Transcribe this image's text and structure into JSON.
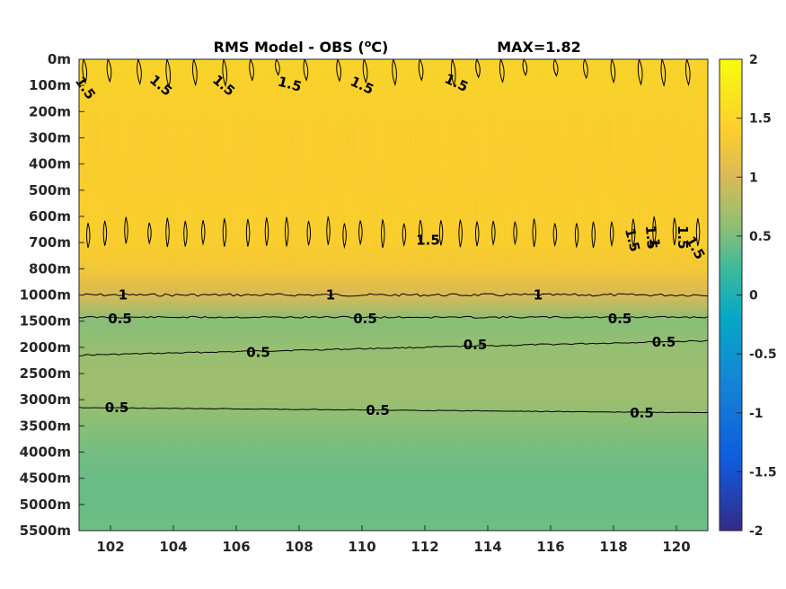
{
  "chart_data": {
    "type": "heatmap",
    "title": "RMS Model - OBS (",
    "title_unit_super": "o",
    "title_unit_suffix": "C)",
    "max_label": "MAX=1.82",
    "x_ticks": [
      102,
      104,
      106,
      108,
      110,
      112,
      114,
      116,
      118,
      120
    ],
    "xlim": [
      101,
      121
    ],
    "y_ticks": [
      "0m",
      "100m",
      "200m",
      "300m",
      "400m",
      "500m",
      "600m",
      "700m",
      "800m",
      "1000m",
      "1500m",
      "2000m",
      "2500m",
      "3000m",
      "3500m",
      "4000m",
      "4500m",
      "5000m",
      "5500m"
    ],
    "colorbar": {
      "ticks": [
        "2",
        "1.5",
        "1",
        "0.5",
        "0",
        "-0.5",
        "-1",
        "-1.5",
        "-2"
      ],
      "range": [
        -2,
        2
      ],
      "colormap": "parula"
    },
    "rms_profile_by_level": [
      1.52,
      1.48,
      1.45,
      1.43,
      1.43,
      1.43,
      1.44,
      1.43,
      1.32,
      1.0,
      0.55,
      0.62,
      0.66,
      0.66,
      0.55,
      0.47,
      0.42,
      0.42,
      0.44
    ],
    "contour_labels": [
      {
        "text": "1.5",
        "x": 101.2,
        "level": 1.1,
        "angle": 55
      },
      {
        "text": "1.5",
        "x": 103.6,
        "level": 1.0,
        "angle": 40
      },
      {
        "text": "1.5",
        "x": 105.6,
        "level": 1.0,
        "angle": 40
      },
      {
        "text": "1.5",
        "x": 107.7,
        "level": 0.95,
        "angle": 15
      },
      {
        "text": "1.5",
        "x": 110.0,
        "level": 1.0,
        "angle": 25
      },
      {
        "text": "1.5",
        "x": 113.0,
        "level": 0.9,
        "angle": 25
      },
      {
        "text": "1.5",
        "x": 112.1,
        "level": 6.9,
        "angle": 0
      },
      {
        "text": "1.5",
        "x": 118.6,
        "level": 6.9,
        "angle": 75
      },
      {
        "text": "1.5",
        "x": 119.2,
        "level": 6.8,
        "angle": 85
      },
      {
        "text": "1",
        "x": 119.3,
        "level": 7.0,
        "angle": 90
      },
      {
        "text": "1.5",
        "x": 120.2,
        "level": 6.8,
        "angle": 90
      },
      {
        "text": "1.5",
        "x": 120.6,
        "level": 7.2,
        "angle": 60
      },
      {
        "text": "1",
        "x": 102.4,
        "level": 9.0,
        "angle": 0
      },
      {
        "text": "1",
        "x": 109.0,
        "level": 9.0,
        "angle": 0
      },
      {
        "text": "1",
        "x": 115.6,
        "level": 9.0,
        "angle": 0
      },
      {
        "text": "0.5",
        "x": 102.3,
        "level": 9.9,
        "angle": 0
      },
      {
        "text": "0.5",
        "x": 110.1,
        "level": 9.9,
        "angle": 0
      },
      {
        "text": "0.5",
        "x": 118.2,
        "level": 9.9,
        "angle": 0
      },
      {
        "text": "0.5",
        "x": 106.7,
        "level": 11.2,
        "angle": 0
      },
      {
        "text": "0.5",
        "x": 113.6,
        "level": 10.9,
        "angle": 0
      },
      {
        "text": "0.5",
        "x": 119.6,
        "level": 10.8,
        "angle": 0
      },
      {
        "text": "0.5",
        "x": 102.2,
        "level": 13.3,
        "angle": 0
      },
      {
        "text": "0.5",
        "x": 110.5,
        "level": 13.4,
        "angle": 0
      },
      {
        "text": "0.5",
        "x": 118.9,
        "level": 13.5,
        "angle": 0
      }
    ]
  }
}
